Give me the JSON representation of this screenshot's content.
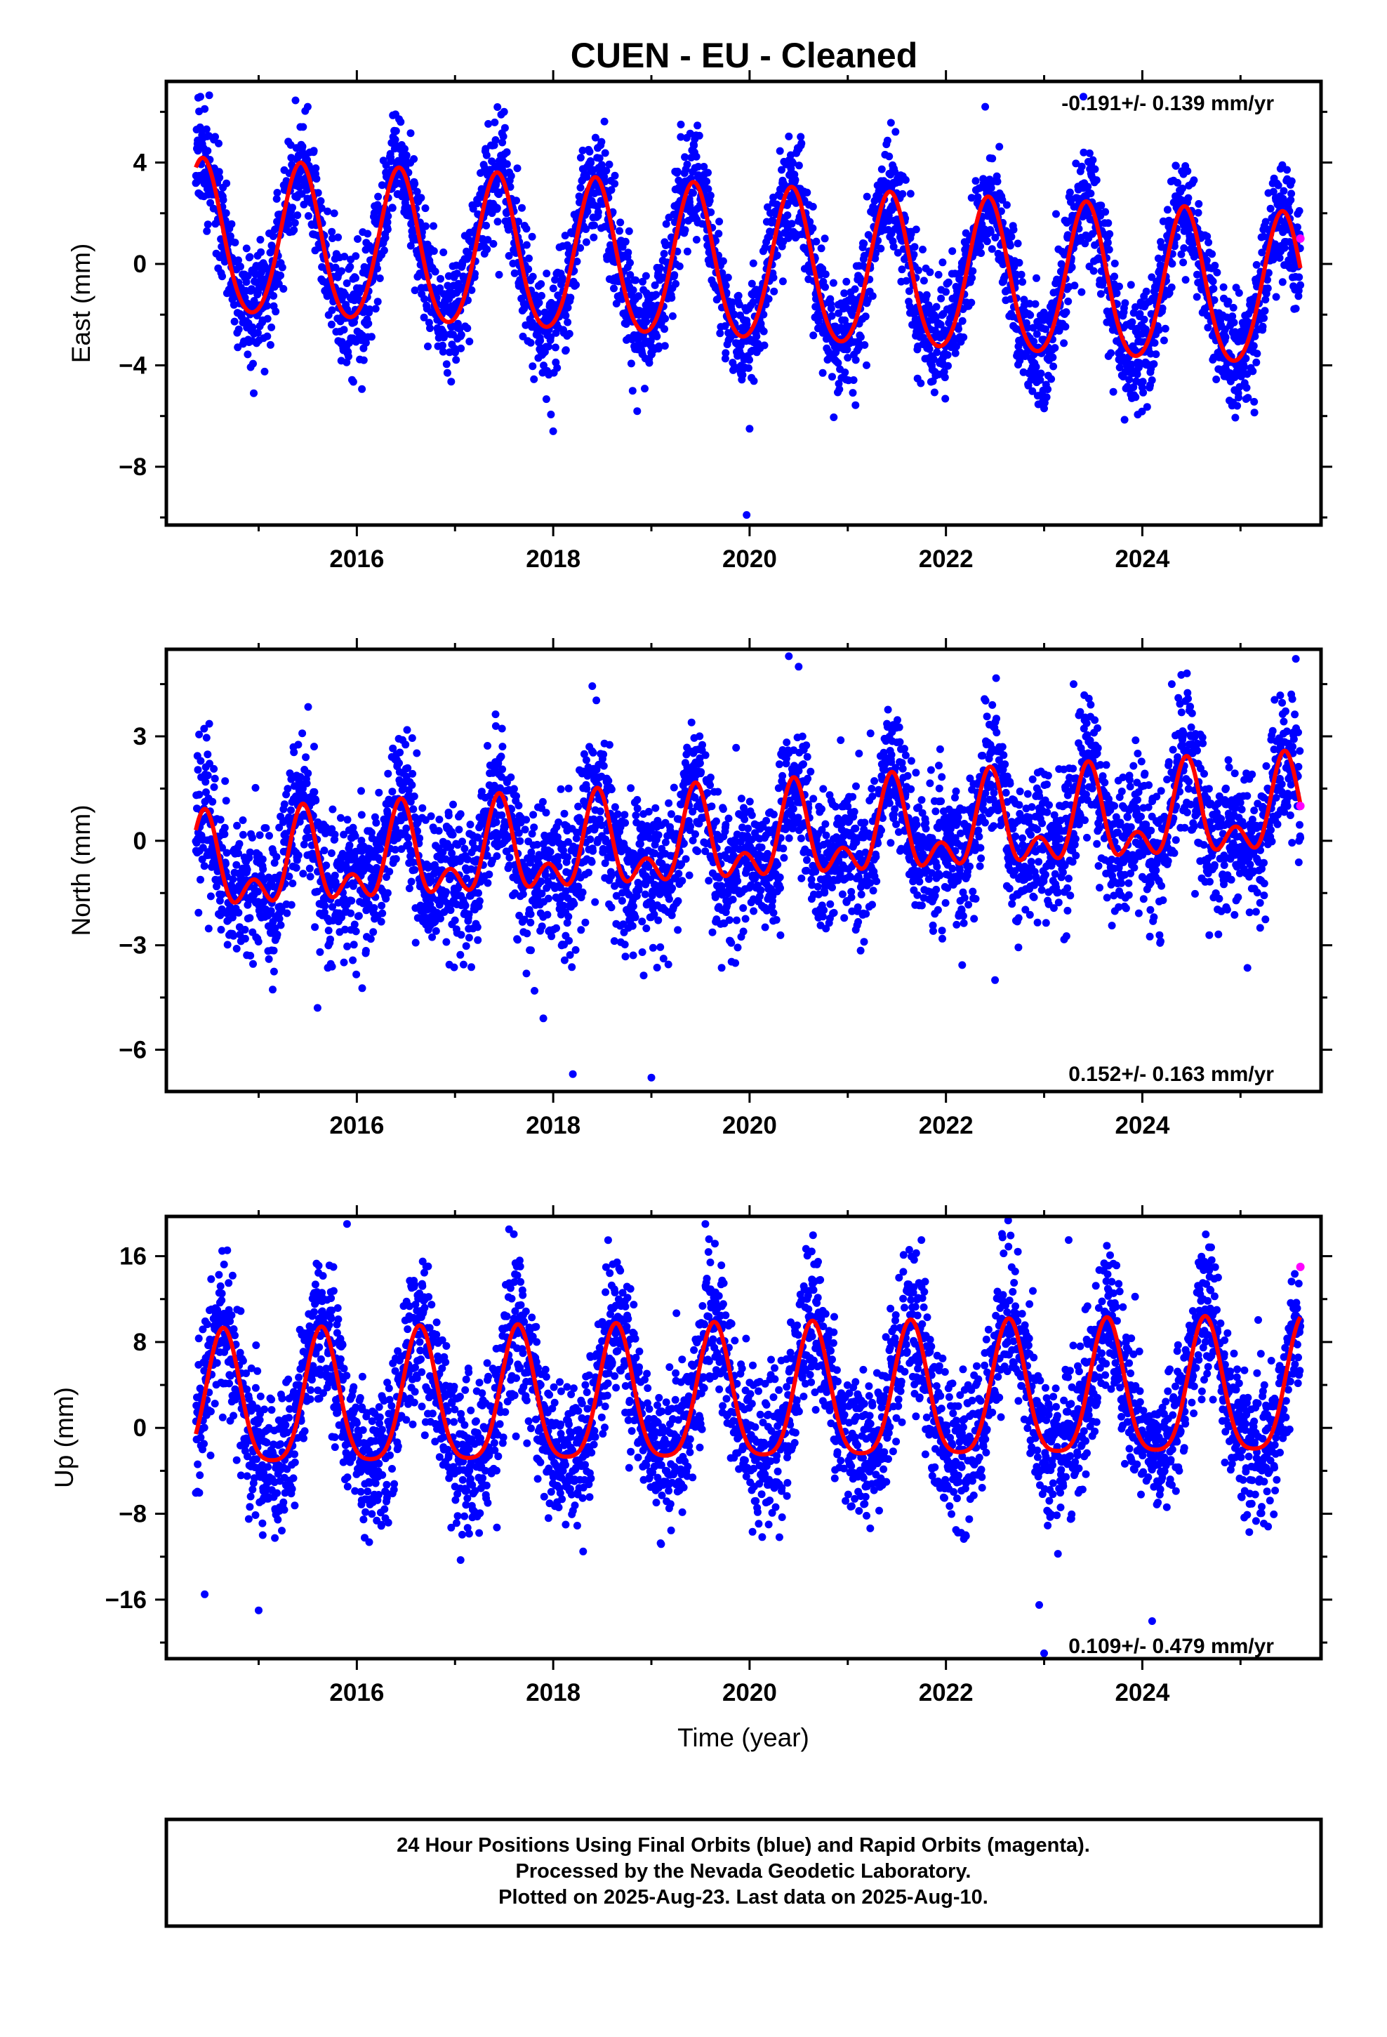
{
  "title": "CUEN  - EU - Cleaned",
  "colors": {
    "final_orbits": "#0000ff",
    "rapid_orbits": "#ff00ff",
    "model_fit": "#ff0000",
    "frame": "#000000"
  },
  "footer": {
    "line1": "24 Hour Positions Using Final Orbits (blue) and Rapid Orbits (magenta).",
    "line2": "Processed by the Nevada Geodetic Laboratory.",
    "line3": "Plotted on 2025-Aug-23. Last data on 2025-Aug-10."
  },
  "chart_data": [
    {
      "type": "scatter",
      "id": "east",
      "ylabel": "East (mm)",
      "xlabel": "",
      "rate_label": "-0.191+/- 0.139 mm/yr",
      "xlim": [
        2014.06,
        2025.82
      ],
      "ylim": [
        -10.3,
        7.2
      ],
      "xticks": [
        2016,
        2018,
        2020,
        2022,
        2024
      ],
      "xtick_labels": [
        "2016",
        "2018",
        "2020",
        "2022",
        "2024"
      ],
      "yticks": [
        4,
        0,
        -4,
        -8
      ],
      "ytick_labels": [
        "4",
        "0",
        "−4",
        "−8"
      ],
      "data_start": 2014.36,
      "data_end": 2025.61,
      "fit": {
        "trend_mm_per_yr": -0.191,
        "offset": 0.9,
        "annual_amplitude": 3.0,
        "annual_peak_year_fraction": 0.43,
        "semiannual_amplitude": 0.3,
        "semiannual_peak_year_fraction": 0.43,
        "amplitude_decay_per_yr": 0.0
      },
      "scatter_sigma": 1.1,
      "rapid_points": [
        {
          "x": 2025.61,
          "y": 1.0
        }
      ],
      "outliers": [
        {
          "x": 2019.97,
          "y": -9.9
        },
        {
          "x": 2018.0,
          "y": -6.6
        },
        {
          "x": 2020.0,
          "y": -6.5
        },
        {
          "x": 2014.95,
          "y": -5.1
        },
        {
          "x": 2023.0,
          "y": -5.7
        },
        {
          "x": 2023.4,
          "y": 6.6
        },
        {
          "x": 2022.4,
          "y": 6.2
        },
        {
          "x": 2017.5,
          "y": 6.0
        },
        {
          "x": 2015.5,
          "y": 6.2
        },
        {
          "x": 2019.3,
          "y": 5.5
        }
      ]
    },
    {
      "type": "scatter",
      "id": "north",
      "ylabel": "North (mm)",
      "xlabel": "",
      "rate_label": "0.152+/- 0.163 mm/yr",
      "xlim": [
        2014.06,
        2025.82
      ],
      "ylim": [
        -7.2,
        5.5
      ],
      "xticks": [
        2016,
        2018,
        2020,
        2022,
        2024
      ],
      "xtick_labels": [
        "2016",
        "2018",
        "2020",
        "2022",
        "2024"
      ],
      "yticks": [
        3,
        0,
        -3,
        -6
      ],
      "ytick_labels": [
        "3",
        "0",
        "−3",
        "−6"
      ],
      "data_start": 2014.36,
      "data_end": 2025.61,
      "fit": {
        "trend_mm_per_yr": 0.152,
        "offset": -0.9,
        "annual_amplitude": 1.05,
        "annual_peak_year_fraction": 0.45,
        "semiannual_amplitude": 0.75,
        "semiannual_peak_year_fraction": 0.45,
        "amplitude_decay_per_yr": 0.0
      },
      "scatter_sigma": 1.0,
      "rapid_points": [
        {
          "x": 2025.61,
          "y": 1.0
        }
      ],
      "outliers": [
        {
          "x": 2018.2,
          "y": -6.7
        },
        {
          "x": 2019.0,
          "y": -6.8
        },
        {
          "x": 2017.9,
          "y": -5.1
        },
        {
          "x": 2015.6,
          "y": -4.8
        },
        {
          "x": 2020.4,
          "y": 5.3
        },
        {
          "x": 2020.5,
          "y": 5.0
        },
        {
          "x": 2023.3,
          "y": 4.5
        },
        {
          "x": 2024.3,
          "y": 4.5
        },
        {
          "x": 2022.5,
          "y": -4.0
        },
        {
          "x": 2025.2,
          "y": -2.5
        }
      ]
    },
    {
      "type": "scatter",
      "id": "up",
      "ylabel": "Up (mm)",
      "xlabel": "Time (year)",
      "rate_label": "0.109+/- 0.479 mm/yr",
      "xlim": [
        2014.06,
        2025.82
      ],
      "ylim": [
        -21.5,
        19.7
      ],
      "xticks": [
        2016,
        2018,
        2020,
        2022,
        2024
      ],
      "xtick_labels": [
        "2016",
        "2018",
        "2020",
        "2022",
        "2024"
      ],
      "yticks": [
        16,
        8,
        0,
        -8,
        -16
      ],
      "ytick_labels": [
        "16",
        "8",
        "0",
        "−8",
        "−16"
      ],
      "data_start": 2014.36,
      "data_end": 2025.61,
      "fit": {
        "trend_mm_per_yr": 0.109,
        "offset": 1.8,
        "annual_amplitude": 6.2,
        "annual_peak_year_fraction": 0.64,
        "semiannual_amplitude": 1.3,
        "semiannual_peak_year_fraction": 0.14,
        "amplitude_decay_per_yr": 0.0
      },
      "scatter_sigma": 3.4,
      "rapid_points": [
        {
          "x": 2025.61,
          "y": 15.0
        }
      ],
      "outliers": [
        {
          "x": 2015.9,
          "y": 19.0
        },
        {
          "x": 2019.55,
          "y": 19.0
        },
        {
          "x": 2017.55,
          "y": 18.5
        },
        {
          "x": 2023.25,
          "y": 17.5
        },
        {
          "x": 2021.75,
          "y": 17.5
        },
        {
          "x": 2023.0,
          "y": -21.0
        },
        {
          "x": 2024.1,
          "y": -18.0
        },
        {
          "x": 2015.0,
          "y": -17.0
        },
        {
          "x": 2014.45,
          "y": -15.5
        },
        {
          "x": 2022.95,
          "y": -16.5
        }
      ]
    }
  ]
}
